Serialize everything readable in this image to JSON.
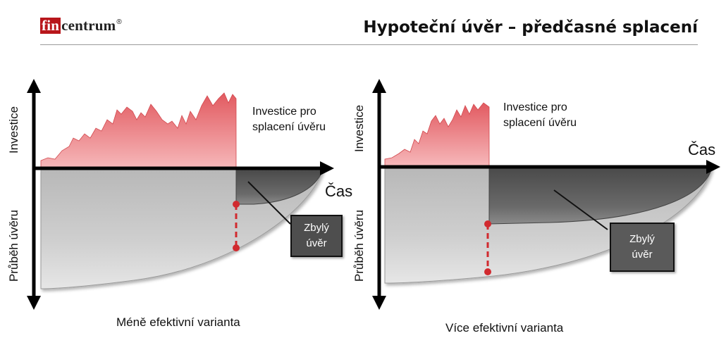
{
  "header": {
    "logo_prefix": "fin",
    "logo_suffix": "centrum",
    "logo_mark": "®",
    "title": "Hypoteční úvěr – předčasné splacení"
  },
  "colors": {
    "investment_fill": "#e86a6f",
    "loan_fill": "#c8c8c8",
    "remaining_fill": "#5f5f5f",
    "marker": "#d12a2f",
    "logo_red": "#b8161b"
  },
  "panels": [
    {
      "y_axis_top_label": "Investice",
      "y_axis_bottom_label": "Průběh úvěru",
      "x_axis_label": "Čas",
      "investment_note": "Investice pro splacení úvěru",
      "remaining_box": "Zbylý úvěr",
      "caption": "Méně efektivní varianta"
    },
    {
      "y_axis_top_label": "Investice",
      "y_axis_bottom_label": "Průběh úvěru",
      "x_axis_label": "Čas",
      "investment_note": "Investice pro splacení úvěru",
      "remaining_box": "Zbylý úvěr",
      "caption": "Více efektivní varianta"
    }
  ]
}
